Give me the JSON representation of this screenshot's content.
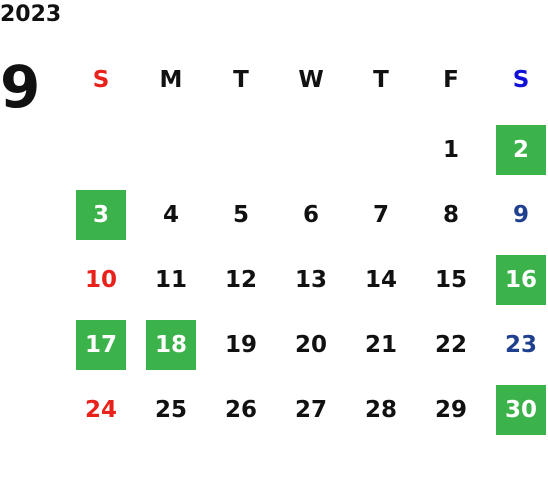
{
  "year": "2023",
  "month": "9",
  "weekdays": [
    "S",
    "M",
    "T",
    "W",
    "T",
    "F",
    "S"
  ],
  "weeks": [
    [
      null,
      null,
      null,
      null,
      null,
      {
        "day": "1",
        "highlight": false
      },
      {
        "day": "2",
        "highlight": true
      }
    ],
    [
      {
        "day": "3",
        "highlight": true
      },
      {
        "day": "4",
        "highlight": false
      },
      {
        "day": "5",
        "highlight": false
      },
      {
        "day": "6",
        "highlight": false
      },
      {
        "day": "7",
        "highlight": false
      },
      {
        "day": "8",
        "highlight": false
      },
      {
        "day": "9",
        "highlight": false
      }
    ],
    [
      {
        "day": "10",
        "highlight": false
      },
      {
        "day": "11",
        "highlight": false
      },
      {
        "day": "12",
        "highlight": false
      },
      {
        "day": "13",
        "highlight": false
      },
      {
        "day": "14",
        "highlight": false
      },
      {
        "day": "15",
        "highlight": false
      },
      {
        "day": "16",
        "highlight": true
      }
    ],
    [
      {
        "day": "17",
        "highlight": true
      },
      {
        "day": "18",
        "highlight": true
      },
      {
        "day": "19",
        "highlight": false
      },
      {
        "day": "20",
        "highlight": false
      },
      {
        "day": "21",
        "highlight": false
      },
      {
        "day": "22",
        "highlight": false
      },
      {
        "day": "23",
        "highlight": false
      }
    ],
    [
      {
        "day": "24",
        "highlight": false
      },
      {
        "day": "25",
        "highlight": false
      },
      {
        "day": "26",
        "highlight": false
      },
      {
        "day": "27",
        "highlight": false
      },
      {
        "day": "28",
        "highlight": false
      },
      {
        "day": "29",
        "highlight": false
      },
      {
        "day": "30",
        "highlight": true
      }
    ]
  ]
}
